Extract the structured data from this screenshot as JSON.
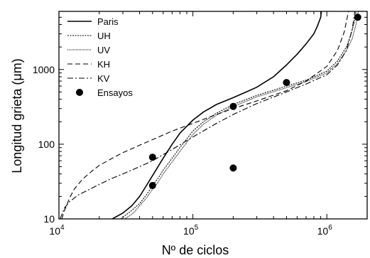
{
  "chart_data": {
    "type": "line",
    "title": "",
    "xlabel": "Nº de ciclos",
    "ylabel": "Longitud grieta (μm)",
    "xscale": "log",
    "yscale": "log",
    "xlim": [
      10000,
      2000000
    ],
    "ylim": [
      10,
      6000
    ],
    "xticks": [
      {
        "value": 10000,
        "base": "10",
        "exp": "4"
      },
      {
        "value": 100000,
        "base": "10",
        "exp": "5"
      },
      {
        "value": 1000000,
        "base": "10",
        "exp": "6"
      }
    ],
    "yticks": [
      {
        "value": 10,
        "label": "10"
      },
      {
        "value": 100,
        "label": "100"
      },
      {
        "value": 1000,
        "label": "1000"
      }
    ],
    "grid": false,
    "legend": "top-left",
    "series": [
      {
        "name": "Paris",
        "style": "solid",
        "color": "#000000",
        "x": [
          25000,
          30000,
          35000,
          40000,
          45000,
          50000,
          60000,
          70000,
          80000,
          100000,
          120000,
          150000,
          200000,
          250000,
          300000,
          400000,
          500000,
          600000,
          700000,
          800000,
          850000,
          900000,
          910000
        ],
        "y": [
          10,
          12,
          15,
          20,
          28,
          38,
          65,
          100,
          140,
          210,
          270,
          340,
          420,
          500,
          580,
          800,
          1150,
          1600,
          2200,
          3000,
          3800,
          5000,
          6000
        ]
      },
      {
        "name": "UH",
        "style": "dotted",
        "color": "#000000",
        "x": [
          29000,
          35000,
          40000,
          45000,
          50000,
          55000,
          60000,
          70000,
          80000,
          100000,
          120000,
          150000,
          200000,
          300000,
          500000,
          700000,
          1000000,
          1200000,
          1400000,
          1500000,
          1600000,
          1650000
        ],
        "y": [
          10,
          13,
          16,
          21,
          28,
          35,
          45,
          65,
          90,
          150,
          200,
          260,
          340,
          450,
          600,
          720,
          950,
          1300,
          2000,
          2800,
          4200,
          6000
        ]
      },
      {
        "name": "UV",
        "style": "fine-dotted",
        "color": "#000000",
        "x": [
          31000,
          36000,
          40000,
          45000,
          50000,
          55000,
          60000,
          70000,
          80000,
          100000,
          120000,
          150000,
          200000,
          300000,
          500000,
          700000,
          1000000,
          1200000,
          1400000,
          1550000,
          1650000,
          1720000
        ],
        "y": [
          10,
          12,
          15,
          19,
          25,
          31,
          40,
          58,
          80,
          135,
          185,
          245,
          320,
          430,
          570,
          690,
          900,
          1200,
          1800,
          2600,
          4000,
          6000
        ]
      },
      {
        "name": "KH",
        "style": "dashed",
        "color": "#000000",
        "x": [
          10500,
          11000,
          12000,
          13000,
          15000,
          18000,
          20000,
          25000,
          30000,
          40000,
          50000,
          70000,
          100000,
          150000,
          200000,
          300000,
          500000,
          700000,
          1000000,
          1200000,
          1350000,
          1450000
        ],
        "y": [
          10,
          13,
          19,
          25,
          34,
          45,
          52,
          65,
          77,
          97,
          115,
          150,
          190,
          250,
          300,
          380,
          520,
          700,
          1100,
          1800,
          3200,
          6000
        ]
      },
      {
        "name": "KV",
        "style": "dashdot",
        "color": "#000000",
        "x": [
          10200,
          11000,
          12000,
          14000,
          17000,
          20000,
          25000,
          30000,
          40000,
          50000,
          70000,
          100000,
          150000,
          200000,
          300000,
          500000,
          700000,
          1000000,
          1200000,
          1400000,
          1550000,
          1620000
        ],
        "y": [
          10,
          14,
          17,
          21,
          25,
          29,
          35,
          40,
          50,
          60,
          85,
          125,
          190,
          250,
          350,
          500,
          640,
          850,
          1150,
          1800,
          3500,
          6000
        ]
      },
      {
        "name": "Ensayos",
        "style": "markers",
        "color": "#000000",
        "x": [
          50000,
          50000,
          200000,
          200000,
          500000,
          1700000
        ],
        "y": [
          67,
          28,
          48,
          320,
          670,
          5000
        ]
      }
    ]
  }
}
